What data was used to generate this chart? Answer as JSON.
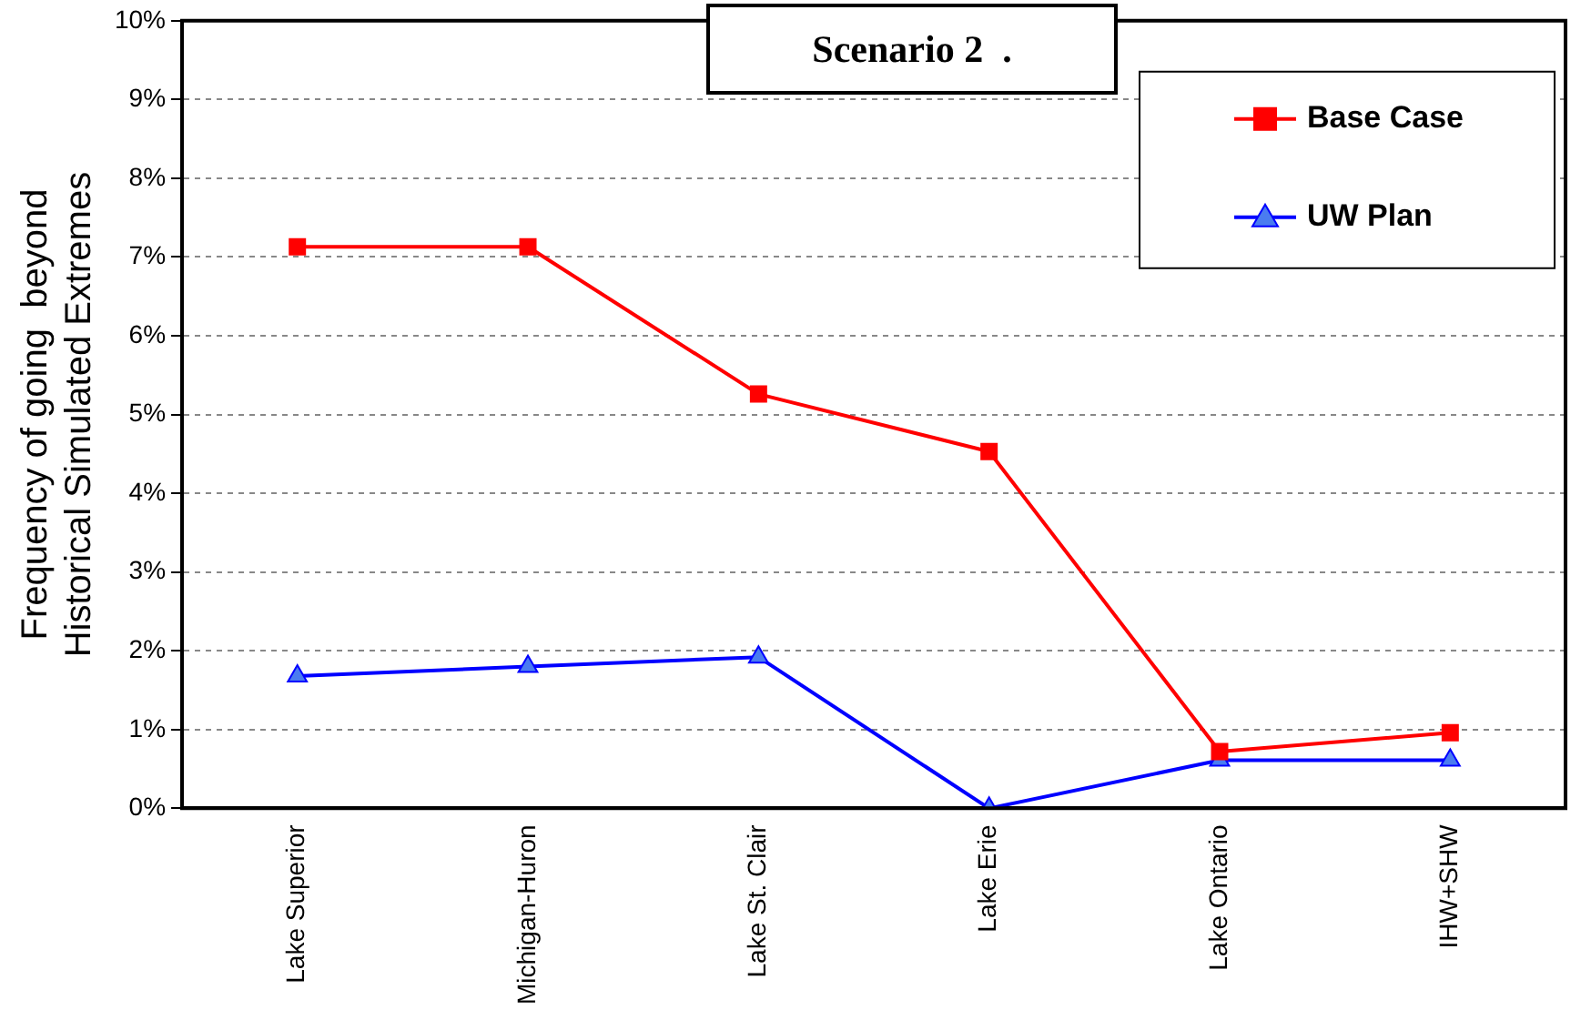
{
  "chart_data": {
    "type": "line",
    "title": "Scenario 2  .",
    "ylabel": "Frequency of going  beyond\nHistorical Simulated Extremes",
    "categories": [
      "Lake Superior",
      "Michigan-Huron",
      "Lake St. Clair",
      "Lake Erie",
      "Lake Ontario",
      "IHW+SHW"
    ],
    "series": [
      {
        "name": "Base Case",
        "color": "#ff0000",
        "marker": "square",
        "values": [
          7.13,
          7.13,
          5.26,
          4.53,
          0.72,
          0.96
        ]
      },
      {
        "name": "UW Plan",
        "color": "#0000ff",
        "marker": "triangle",
        "values": [
          1.68,
          1.8,
          1.92,
          0,
          0.61,
          0.61
        ]
      }
    ],
    "ylim": [
      0,
      10
    ],
    "yticks": [
      {
        "value": 0,
        "label": "0%"
      },
      {
        "value": 1,
        "label": "1%"
      },
      {
        "value": 2,
        "label": "2%"
      },
      {
        "value": 3,
        "label": "3%"
      },
      {
        "value": 4,
        "label": "4%"
      },
      {
        "value": 5,
        "label": "5%"
      },
      {
        "value": 6,
        "label": "6%"
      },
      {
        "value": 7,
        "label": "7%"
      },
      {
        "value": 8,
        "label": "8%"
      },
      {
        "value": 9,
        "label": "9%"
      },
      {
        "value": 10,
        "label": "10%"
      }
    ],
    "grid": "y",
    "legend": "top right"
  }
}
